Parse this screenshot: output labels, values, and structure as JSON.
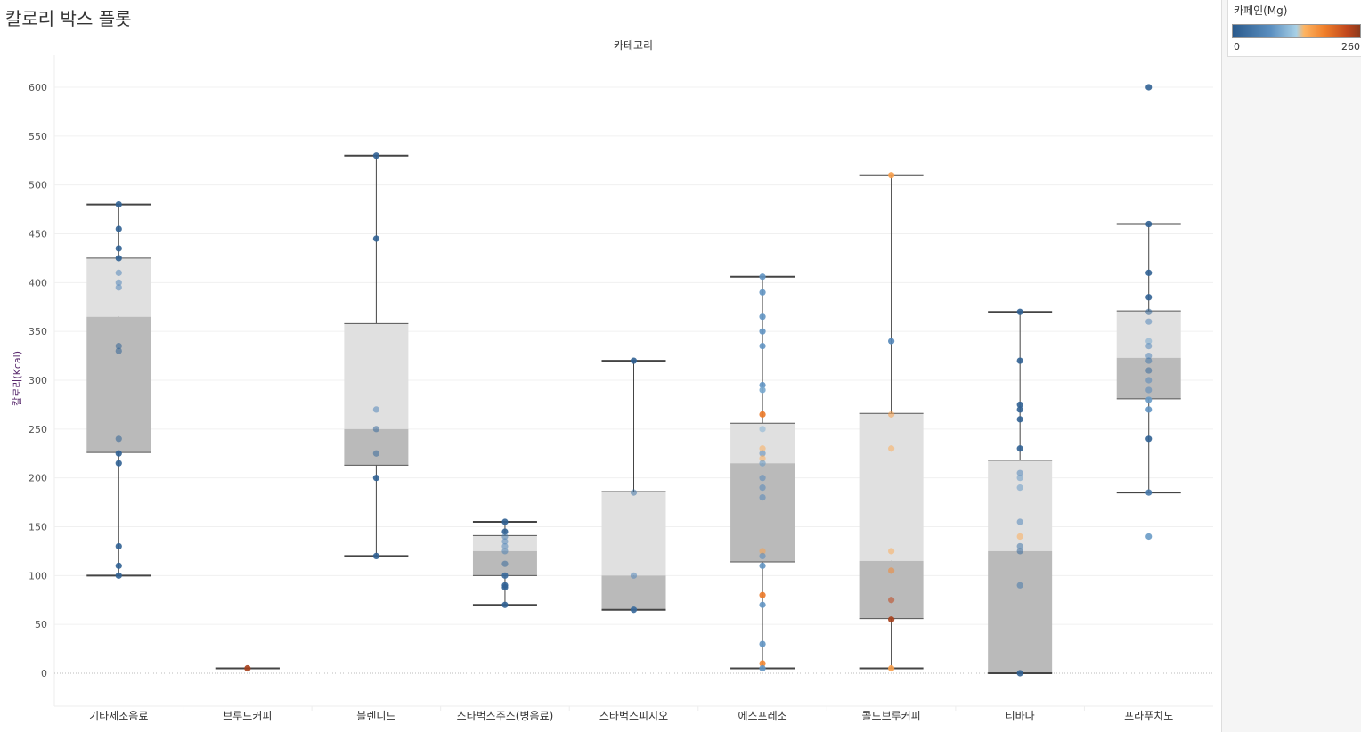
{
  "title": "칼로리 박스 플롯",
  "legend": {
    "title": "카페인(Mg)",
    "min": "0",
    "max": "260",
    "colors": [
      "#2a5a8c",
      "#5b8fc0",
      "#a8d0e6",
      "#fdb462",
      "#f07f2a",
      "#c0461c",
      "#8b3a1c"
    ]
  },
  "chart_data": {
    "type": "box",
    "title": "칼로리 박스 플롯",
    "xlabel": "카테고리",
    "ylabel": "칼로리(Kcal)",
    "ylim": [
      -35,
      630
    ],
    "yticks": [
      0,
      50,
      100,
      150,
      200,
      250,
      300,
      350,
      400,
      450,
      500,
      550,
      600
    ],
    "categories": [
      "기타제조음료",
      "브루드커피",
      "블렌디드",
      "스타벅스주스(병음료)",
      "스타벅스피지오",
      "에스프레소",
      "콜드브루커피",
      "티바나",
      "프라푸치노"
    ],
    "boxes": [
      {
        "min": 100,
        "q1": 226,
        "median": 365,
        "q3": 425,
        "max": 480
      },
      {
        "min": 5,
        "q1": 5,
        "median": 5,
        "q3": 5,
        "max": 5
      },
      {
        "min": 120,
        "q1": 213,
        "median": 250,
        "q3": 358,
        "max": 530
      },
      {
        "min": 70,
        "q1": 100,
        "median": 125,
        "q3": 141,
        "max": 155
      },
      {
        "min": 65,
        "q1": 65,
        "median": 100,
        "q3": 186,
        "max": 320
      },
      {
        "min": 5,
        "q1": 114,
        "median": 215,
        "q3": 256,
        "max": 406
      },
      {
        "min": 5,
        "q1": 56,
        "median": 115,
        "q3": 266,
        "max": 510
      },
      {
        "min": 0,
        "q1": 0,
        "median": 125,
        "q3": 218,
        "max": 370
      },
      {
        "min": 185,
        "q1": 281,
        "median": 323,
        "q3": 371,
        "max": 460
      }
    ],
    "points": [
      [
        [
          480,
          10
        ],
        [
          455,
          10
        ],
        [
          435,
          10
        ],
        [
          425,
          10
        ],
        [
          410,
          60
        ],
        [
          400,
          60
        ],
        [
          395,
          60
        ],
        [
          335,
          10
        ],
        [
          330,
          10
        ],
        [
          240,
          10
        ],
        [
          225,
          10
        ],
        [
          215,
          10
        ],
        [
          130,
          10
        ],
        [
          110,
          10
        ],
        [
          100,
          10
        ]
      ],
      [
        [
          5,
          245
        ]
      ],
      [
        [
          530,
          10
        ],
        [
          445,
          10
        ],
        [
          270,
          60
        ],
        [
          250,
          20
        ],
        [
          225,
          20
        ],
        [
          200,
          10
        ],
        [
          120,
          10
        ]
      ],
      [
        [
          155,
          10
        ],
        [
          145,
          10
        ],
        [
          140,
          50
        ],
        [
          135,
          60
        ],
        [
          130,
          60
        ],
        [
          125,
          50
        ],
        [
          112,
          20
        ],
        [
          100,
          20
        ],
        [
          90,
          10
        ],
        [
          88,
          10
        ],
        [
          70,
          10
        ]
      ],
      [
        [
          320,
          10
        ],
        [
          185,
          40
        ],
        [
          100,
          60
        ],
        [
          65,
          20
        ]
      ],
      [
        [
          406,
          75
        ],
        [
          390,
          75
        ],
        [
          365,
          75
        ],
        [
          350,
          75
        ],
        [
          335,
          75
        ],
        [
          295,
          75
        ],
        [
          290,
          90
        ],
        [
          265,
          190
        ],
        [
          250,
          100
        ],
        [
          230,
          150
        ],
        [
          225,
          60
        ],
        [
          220,
          150
        ],
        [
          215,
          75
        ],
        [
          200,
          60
        ],
        [
          190,
          60
        ],
        [
          180,
          60
        ],
        [
          125,
          160
        ],
        [
          120,
          60
        ],
        [
          110,
          75
        ],
        [
          80,
          190
        ],
        [
          70,
          75
        ],
        [
          30,
          75
        ],
        [
          10,
          180
        ],
        [
          5,
          75
        ]
      ],
      [
        [
          510,
          160
        ],
        [
          340,
          60
        ],
        [
          265,
          160
        ],
        [
          230,
          150
        ],
        [
          125,
          150
        ],
        [
          105,
          180
        ],
        [
          75,
          230
        ],
        [
          55,
          245
        ],
        [
          5,
          160
        ]
      ],
      [
        [
          370,
          10
        ],
        [
          320,
          10
        ],
        [
          275,
          10
        ],
        [
          270,
          10
        ],
        [
          260,
          10
        ],
        [
          230,
          10
        ],
        [
          205,
          60
        ],
        [
          200,
          80
        ],
        [
          190,
          80
        ],
        [
          155,
          60
        ],
        [
          140,
          150
        ],
        [
          130,
          40
        ],
        [
          125,
          20
        ],
        [
          90,
          40
        ],
        [
          0,
          10
        ]
      ],
      [
        [
          600,
          10
        ],
        [
          460,
          10
        ],
        [
          410,
          10
        ],
        [
          385,
          10
        ],
        [
          370,
          10
        ],
        [
          360,
          60
        ],
        [
          340,
          90
        ],
        [
          335,
          60
        ],
        [
          325,
          60
        ],
        [
          320,
          40
        ],
        [
          310,
          20
        ],
        [
          300,
          60
        ],
        [
          290,
          60
        ],
        [
          280,
          80
        ],
        [
          270,
          75
        ],
        [
          240,
          10
        ],
        [
          185,
          40
        ],
        [
          140,
          80
        ]
      ]
    ]
  }
}
